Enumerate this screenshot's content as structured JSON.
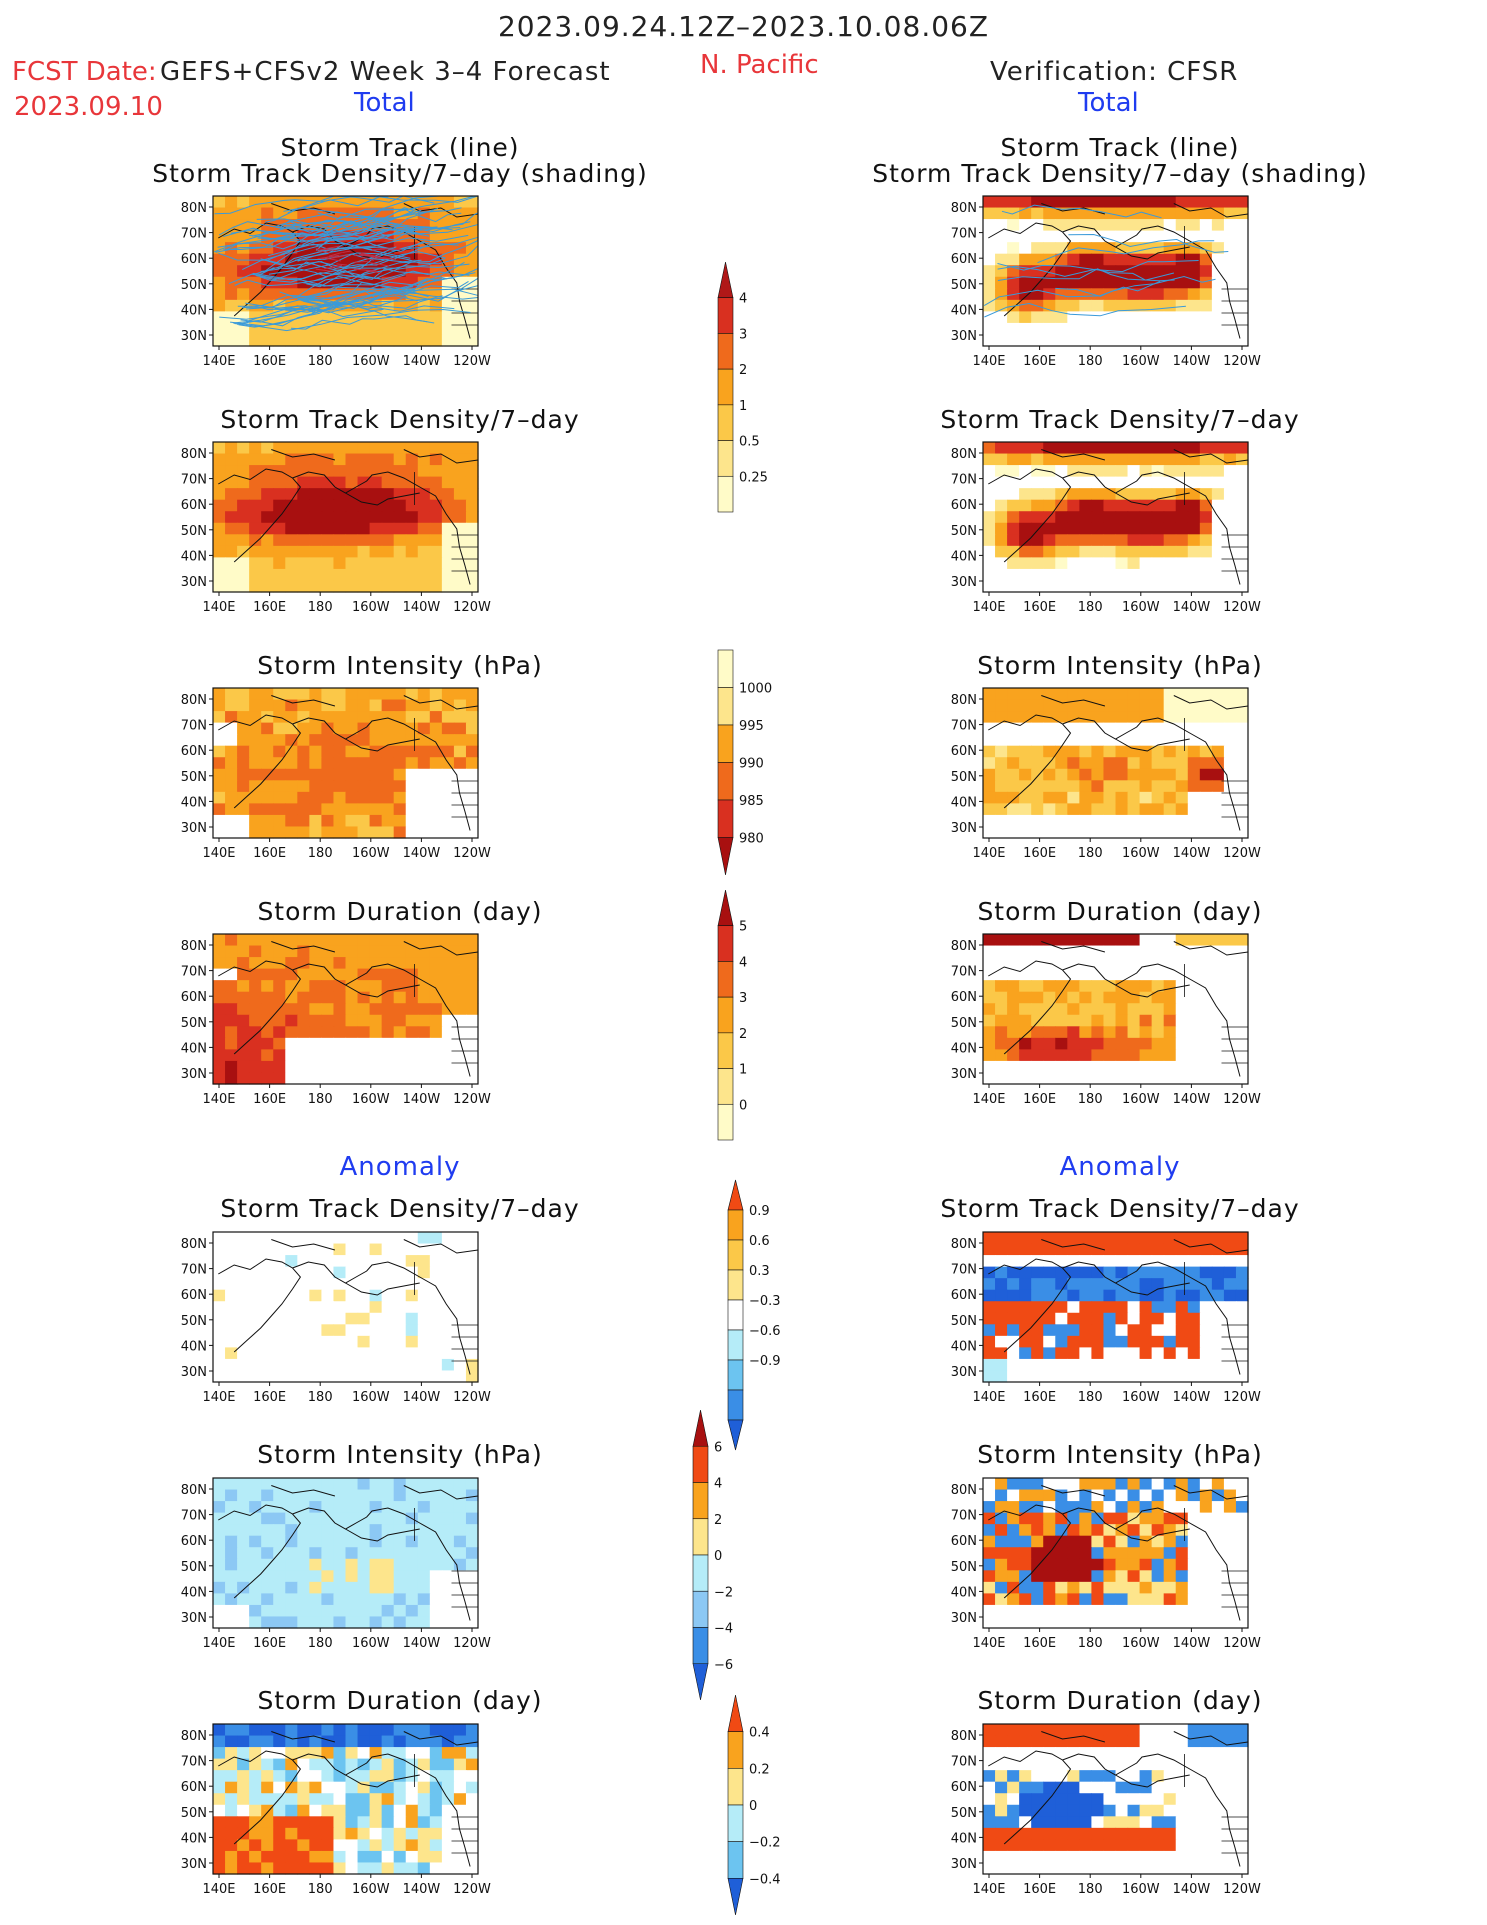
{
  "header": {
    "period": "2023.09.24.12Z–2023.10.08.06Z",
    "fcst_label": "FCST Date:",
    "forecast_system": "GEFS+CFSv2 Week 3–4 Forecast",
    "fcst_date": "2023.09.10",
    "region": "N. Pacific",
    "verification": "Verification: CFSR",
    "left_total": "Total",
    "right_total": "Total",
    "left_anomaly": "Anomaly",
    "right_anomaly": "Anomaly"
  },
  "titles": {
    "track_line": "Storm Track (line)",
    "track_shading": "Storm Track Density/7–day (shading)",
    "density": "Storm Track Density/7–day",
    "intensity": "Storm Intensity (hPa)",
    "duration": "Storm Duration (day)"
  },
  "map_axes": {
    "x_ticks": [
      "140E",
      "160E",
      "180",
      "160W",
      "140W",
      "120W"
    ],
    "y_ticks": [
      "80N",
      "70N",
      "60N",
      "50N",
      "40N",
      "30N"
    ]
  },
  "colors": {
    "coast": "#111111",
    "track_line": "#3a9ad9"
  },
  "chart_data": [
    {
      "type": "heatmap",
      "panel": "forecast-total-track",
      "title": "Storm Track (line) / Storm Track Density/7–day (shading)",
      "x_ticks": [
        "140E",
        "160E",
        "180",
        "160W",
        "140W",
        "120W"
      ],
      "y_ticks": [
        "80N",
        "70N",
        "60N",
        "50N",
        "40N",
        "30N"
      ],
      "colorbar": "density",
      "has_track_lines": true
    },
    {
      "type": "heatmap",
      "panel": "verification-total-track",
      "title": "Storm Track (line) / Storm Track Density/7–day (shading)",
      "x_ticks": [
        "140E",
        "160E",
        "180",
        "160W",
        "140W",
        "120W"
      ],
      "y_ticks": [
        "80N",
        "70N",
        "60N",
        "50N",
        "40N",
        "30N"
      ],
      "colorbar": "density",
      "has_track_lines": true
    },
    {
      "type": "heatmap",
      "panel": "forecast-total-density",
      "title": "Storm Track Density/7–day",
      "colorbar": "density"
    },
    {
      "type": "heatmap",
      "panel": "verification-total-density",
      "title": "Storm Track Density/7–day",
      "colorbar": "density"
    },
    {
      "type": "heatmap",
      "panel": "forecast-total-intensity",
      "title": "Storm Intensity (hPa)",
      "colorbar": "intensity"
    },
    {
      "type": "heatmap",
      "panel": "verification-total-intensity",
      "title": "Storm Intensity (hPa)",
      "colorbar": "intensity"
    },
    {
      "type": "heatmap",
      "panel": "forecast-total-duration",
      "title": "Storm Duration (day)",
      "colorbar": "duration"
    },
    {
      "type": "heatmap",
      "panel": "verification-total-duration",
      "title": "Storm Duration (day)",
      "colorbar": "duration"
    },
    {
      "type": "heatmap",
      "panel": "forecast-anomaly-density",
      "title": "Storm Track Density/7–day",
      "colorbar": "density-anomaly"
    },
    {
      "type": "heatmap",
      "panel": "verification-anomaly-density",
      "title": "Storm Track Density/7–day",
      "colorbar": "density-anomaly"
    },
    {
      "type": "heatmap",
      "panel": "forecast-anomaly-intensity",
      "title": "Storm Intensity (hPa)",
      "colorbar": "intensity-anomaly"
    },
    {
      "type": "heatmap",
      "panel": "verification-anomaly-intensity",
      "title": "Storm Intensity (hPa)",
      "colorbar": "intensity-anomaly"
    },
    {
      "type": "heatmap",
      "panel": "forecast-anomaly-duration",
      "title": "Storm Duration (day)",
      "colorbar": "duration-anomaly"
    },
    {
      "type": "heatmap",
      "panel": "verification-anomaly-duration",
      "title": "Storm Duration (day)",
      "colorbar": "duration-anomaly"
    }
  ],
  "colorbars": {
    "density": {
      "labels": [
        "4",
        "3",
        "2",
        "1",
        "0.5",
        "0.25"
      ],
      "colors": [
        "#b01818",
        "#d93020",
        "#ef6a1c",
        "#f9a31e",
        "#fbc848",
        "#fde58c",
        "#fffbc8"
      ]
    },
    "intensity": {
      "labels": [
        "1000",
        "995",
        "990",
        "985",
        "980"
      ],
      "colors": [
        "#fffbc8",
        "#fde58c",
        "#f9a31e",
        "#ef6a1c",
        "#d93020",
        "#a81010"
      ]
    },
    "duration": {
      "labels": [
        "5",
        "4",
        "3",
        "2",
        "1",
        "0"
      ],
      "colors": [
        "#a81010",
        "#d93020",
        "#ef6a1c",
        "#f9a31e",
        "#fbc848",
        "#fde58c",
        "#fffbc8"
      ]
    },
    "density_anomaly": {
      "labels": [
        "0.9",
        "0.6",
        "0.3",
        "−0.3",
        "−0.6",
        "−0.9"
      ],
      "colors": [
        "#f04a14",
        "#f9a31e",
        "#fbc848",
        "#fde58c",
        "#ffffff",
        "#b5ecf8",
        "#6cc4f0",
        "#3a8ee6",
        "#1f5fd8"
      ]
    },
    "intensity_anomaly": {
      "labels": [
        "6",
        "4",
        "2",
        "0",
        "−2",
        "−4",
        "−6"
      ],
      "colors": [
        "#a81010",
        "#f04a14",
        "#f9a31e",
        "#fde58c",
        "#b5ecf8",
        "#8cc8f4",
        "#3a8ee6",
        "#1f5fd8"
      ]
    },
    "duration_anomaly": {
      "labels": [
        "0.4",
        "0.2",
        "0",
        "−0.2",
        "−0.4"
      ],
      "colors": [
        "#f04a14",
        "#f9a31e",
        "#fde58c",
        "#b5ecf8",
        "#6cc4f0",
        "#1f5fd8"
      ]
    }
  }
}
